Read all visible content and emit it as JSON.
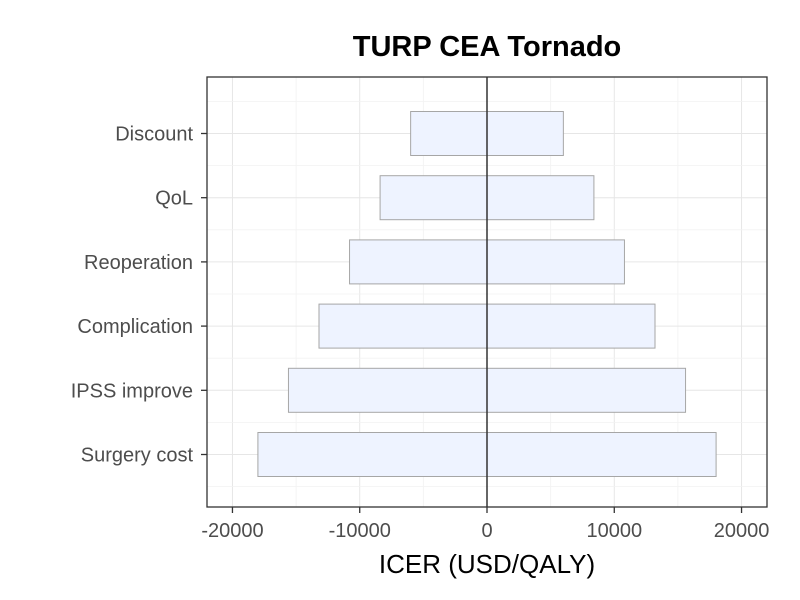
{
  "chart_data": {
    "type": "bar",
    "orientation": "horizontal",
    "title": "TURP CEA Tornado",
    "xlabel": "ICER (USD/QALY)",
    "ylabel": "",
    "xlim": [
      -22000,
      22000
    ],
    "xticks": [
      -20000,
      -10000,
      0,
      10000,
      20000
    ],
    "xtick_labels": [
      "-20000",
      "-10000",
      "0",
      "10000",
      "20000"
    ],
    "grid": true,
    "reference_line": 0,
    "categories": [
      "Surgery cost",
      "IPSS improve",
      "Complication",
      "Reoperation",
      "QoL",
      "Discount"
    ],
    "low": [
      -18000,
      -15600,
      -13200,
      -10800,
      -8400,
      -6000
    ],
    "high": [
      18000,
      15600,
      13200,
      10800,
      8400,
      6000
    ],
    "bar_fill": "#eef3ff",
    "bar_stroke": "#a6a6a6"
  }
}
